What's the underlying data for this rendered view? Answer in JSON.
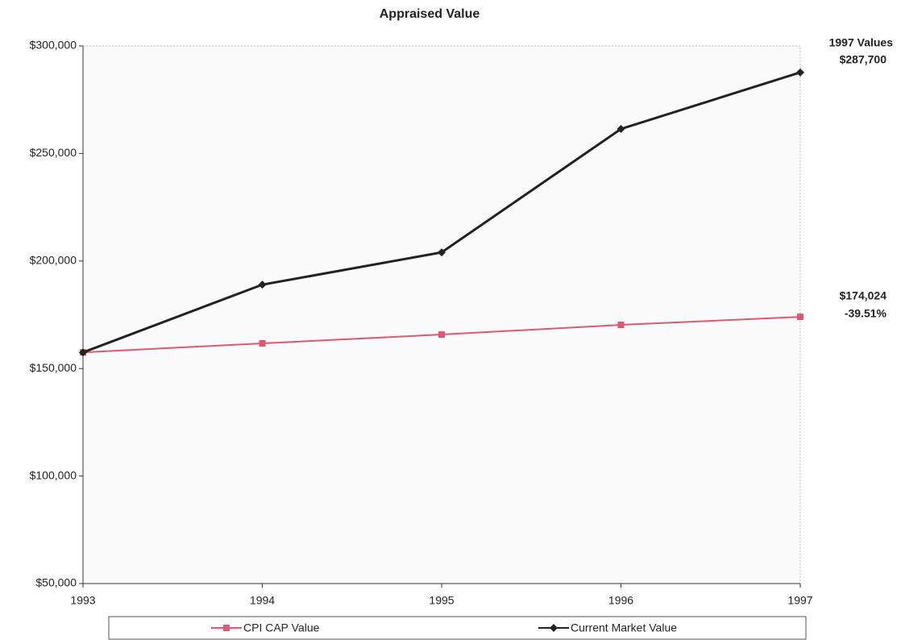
{
  "chart_data": {
    "type": "line",
    "title": "Appraised Value",
    "x": [
      1993,
      1994,
      1995,
      1996,
      1997
    ],
    "xlim": [
      1993,
      1997
    ],
    "xticks": [
      1993,
      1994,
      1995,
      1996,
      1997
    ],
    "ylim": [
      50000,
      300000
    ],
    "yticks": [
      {
        "value": 50000,
        "label": "$50,000"
      },
      {
        "value": 100000,
        "label": "$100,000"
      },
      {
        "value": 150000,
        "label": "$150,000"
      },
      {
        "value": 200000,
        "label": "$200,000"
      },
      {
        "value": 250000,
        "label": "$250,000"
      },
      {
        "value": 300000,
        "label": "$300,000"
      }
    ],
    "grid": false,
    "legend": "bottom",
    "series": [
      {
        "name": "CPI CAP Value",
        "color": "#e2576f",
        "marker": "square",
        "values": [
          157500,
          161700,
          165800,
          170300,
          174024
        ]
      },
      {
        "name": "Current Market Value",
        "color": "#222222",
        "marker": "diamond",
        "values": [
          157500,
          189000,
          204000,
          261400,
          287700
        ]
      }
    ],
    "annotations": [
      "1997 Values",
      "$287,700",
      "$174,024",
      "-39.51%"
    ]
  }
}
